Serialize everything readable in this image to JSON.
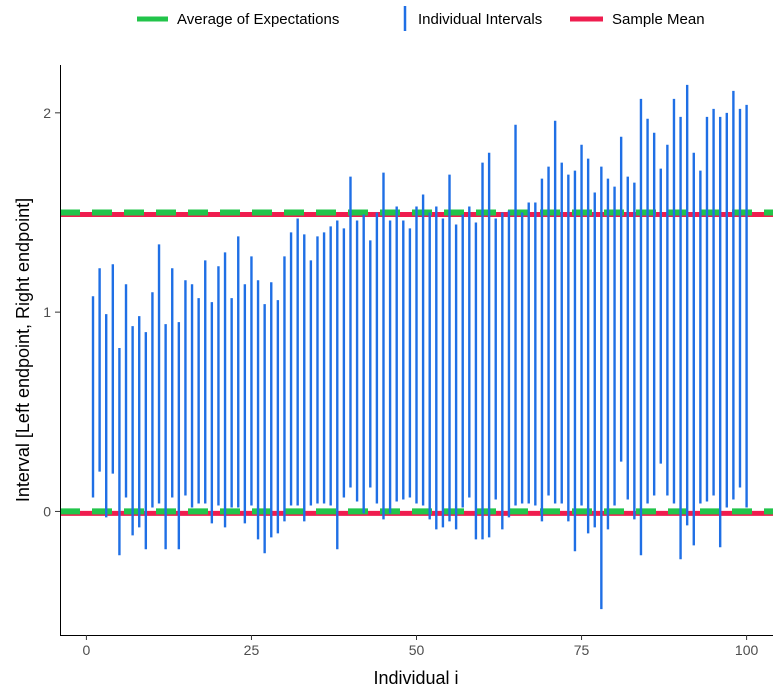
{
  "chart_data": {
    "type": "interval",
    "xlabel": "Individual i",
    "ylabel": "Interval [Left endpoint, Right endpoint]",
    "xlim": [
      -4,
      104
    ],
    "ylim": [
      -0.62,
      2.24
    ],
    "x_ticks": [
      0,
      25,
      50,
      75,
      100
    ],
    "x_tick_labels": [
      "0",
      "25",
      "50",
      "75",
      "100"
    ],
    "y_ticks": [
      0,
      1,
      2
    ],
    "y_tick_labels": [
      "0",
      "1",
      "2"
    ],
    "grid": false,
    "legend_position": "top",
    "legend": [
      {
        "label": "Average of Expectations",
        "style": "dashed-line",
        "color": "#22c44a"
      },
      {
        "label": "Individual Intervals",
        "style": "vertical-segment",
        "color": "#1f6fe5"
      },
      {
        "label": "Sample Mean",
        "style": "solid-line",
        "color": "#ef1d4f"
      }
    ],
    "series": [
      {
        "name": "Individual Intervals",
        "color": "#1f6fe5",
        "x": [
          1,
          2,
          3,
          4,
          5,
          6,
          7,
          8,
          9,
          10,
          11,
          12,
          13,
          14,
          15,
          16,
          17,
          18,
          19,
          20,
          21,
          22,
          23,
          24,
          25,
          26,
          27,
          28,
          29,
          30,
          31,
          32,
          33,
          34,
          35,
          36,
          37,
          38,
          39,
          40,
          41,
          42,
          43,
          44,
          45,
          46,
          47,
          48,
          49,
          50,
          51,
          52,
          53,
          54,
          55,
          56,
          57,
          58,
          59,
          60,
          61,
          62,
          63,
          64,
          65,
          66,
          67,
          68,
          69,
          70,
          71,
          72,
          73,
          74,
          75,
          76,
          77,
          78,
          79,
          80,
          81,
          82,
          83,
          84,
          85,
          86,
          87,
          88,
          89,
          90,
          91,
          92,
          93,
          94,
          95,
          96,
          97,
          98,
          99,
          100
        ],
        "lower": [
          0.07,
          0.2,
          -0.03,
          0.19,
          -0.22,
          0.07,
          -0.12,
          -0.08,
          -0.19,
          0.02,
          0.04,
          -0.19,
          0.07,
          -0.19,
          0.08,
          0.02,
          0.04,
          0.04,
          -0.06,
          0.03,
          -0.08,
          0.02,
          0.02,
          -0.06,
          0.03,
          -0.14,
          -0.21,
          -0.13,
          -0.11,
          -0.05,
          0.03,
          0.03,
          -0.05,
          0.03,
          0.04,
          0.04,
          0.03,
          -0.19,
          0.07,
          0.12,
          0.05,
          -0.01,
          0.12,
          0.04,
          -0.04,
          -0.01,
          0.05,
          0.06,
          0.07,
          0.04,
          0.03,
          -0.04,
          -0.09,
          -0.08,
          -0.05,
          -0.09,
          0.02,
          0.07,
          -0.14,
          -0.14,
          -0.13,
          0.06,
          -0.09,
          -0.03,
          0.03,
          0.04,
          0.04,
          0.03,
          -0.05,
          0.08,
          0.04,
          0.04,
          -0.05,
          -0.2,
          0.03,
          -0.11,
          -0.08,
          -0.49,
          -0.09,
          0.03,
          0.25,
          0.06,
          -0.04,
          -0.22,
          0.04,
          0.08,
          0.24,
          0.08,
          0.04,
          -0.24,
          -0.07,
          -0.17,
          0.04,
          0.05,
          0.08,
          -0.18,
          0.02,
          0.06,
          0.12,
          0.02
        ],
        "upper": [
          1.08,
          1.22,
          0.99,
          1.24,
          0.82,
          1.14,
          0.93,
          0.98,
          0.9,
          1.1,
          1.34,
          0.94,
          1.22,
          0.95,
          1.16,
          1.14,
          1.07,
          1.26,
          1.05,
          1.23,
          1.3,
          1.07,
          1.38,
          1.14,
          1.28,
          1.16,
          1.04,
          1.15,
          1.06,
          1.28,
          1.4,
          1.47,
          1.39,
          1.26,
          1.38,
          1.4,
          1.43,
          1.46,
          1.42,
          1.68,
          1.46,
          1.49,
          1.36,
          1.5,
          1.7,
          1.46,
          1.53,
          1.46,
          1.42,
          1.53,
          1.59,
          1.5,
          1.53,
          1.47,
          1.69,
          1.44,
          1.49,
          1.53,
          1.45,
          1.75,
          1.8,
          1.47,
          1.5,
          1.51,
          1.94,
          1.5,
          1.55,
          1.55,
          1.67,
          1.73,
          1.96,
          1.75,
          1.69,
          1.71,
          1.84,
          1.77,
          1.6,
          1.73,
          1.67,
          1.63,
          1.88,
          1.68,
          1.65,
          2.07,
          1.97,
          1.9,
          1.72,
          1.84,
          2.07,
          1.98,
          2.14,
          1.8,
          1.71,
          1.98,
          2.02,
          1.98,
          2.0,
          2.11,
          2.02,
          2.04
        ]
      }
    ],
    "reference_lines": [
      {
        "name": "Average of Expectations",
        "values": [
          0.0,
          1.5
        ],
        "color": "#22c44a",
        "style": "dashed"
      },
      {
        "name": "Sample Mean",
        "values": [
          -0.01,
          1.49
        ],
        "color": "#ef1d4f",
        "style": "solid"
      }
    ]
  }
}
